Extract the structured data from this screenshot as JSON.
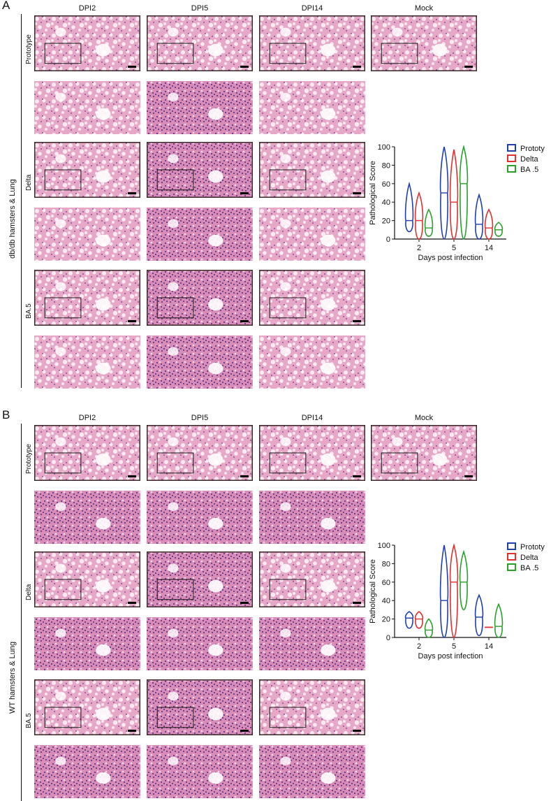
{
  "panels": [
    {
      "letter": "A",
      "side_label": "db/db hamsters & Lung",
      "columns": [
        "DPI2",
        "DPI5",
        "DPI14",
        "Mock"
      ],
      "rows": [
        "Prototype",
        "Delta",
        "BA.5"
      ],
      "chart": {
        "ylabel": "Pathological Score",
        "xlabel": "Days post infection",
        "ticks_x": [
          "2",
          "5",
          "14"
        ],
        "ticks_y": [
          "0",
          "20",
          "40",
          "60",
          "80",
          "100"
        ],
        "legend": [
          "Prototype",
          "Delta",
          "BA .5"
        ]
      }
    },
    {
      "letter": "B",
      "side_label": "WT hamsters & Lung",
      "columns": [
        "DPI2",
        "DPI5",
        "DPI14",
        "Mock"
      ],
      "rows": [
        "Prototype",
        "Delta",
        "BA.5"
      ],
      "chart": {
        "ylabel": "Pathological Score",
        "xlabel": "Days post infection",
        "ticks_x": [
          "2",
          "5",
          "14"
        ],
        "ticks_y": [
          "0",
          "20",
          "40",
          "60",
          "80",
          "100"
        ],
        "legend": [
          "Prototype",
          "Delta",
          "BA .5"
        ]
      }
    }
  ],
  "chart_data": [
    {
      "type": "violin",
      "xlabel": "Days post infection",
      "ylabel": "Pathological Score",
      "categories": [
        "2",
        "5",
        "14"
      ],
      "ylim": [
        0,
        100
      ],
      "legend_position": "top-right",
      "colors": [
        "#1f3fb0",
        "#e03030",
        "#2aa02a"
      ],
      "series": [
        {
          "name": "Prototype",
          "median": [
            20,
            50,
            16
          ],
          "min": [
            8,
            0,
            0
          ],
          "max": [
            60,
            100,
            48
          ]
        },
        {
          "name": "Delta",
          "median": [
            20,
            40,
            12
          ],
          "min": [
            0,
            0,
            0
          ],
          "max": [
            50,
            97,
            32
          ]
        },
        {
          "name": "BA .5",
          "median": [
            12,
            60,
            10
          ],
          "min": [
            3,
            0,
            3
          ],
          "max": [
            32,
            100,
            18
          ]
        }
      ]
    },
    {
      "type": "violin",
      "xlabel": "Days post infection",
      "ylabel": "Pathological Score",
      "categories": [
        "2",
        "5",
        "14"
      ],
      "ylim": [
        0,
        100
      ],
      "legend_position": "top-right",
      "colors": [
        "#1f3fb0",
        "#e03030",
        "#2aa02a"
      ],
      "series": [
        {
          "name": "Prototype",
          "median": [
            21,
            40,
            22
          ],
          "min": [
            10,
            0,
            2
          ],
          "max": [
            28,
            100,
            46
          ]
        },
        {
          "name": "Delta",
          "median": [
            20,
            60,
            11
          ],
          "min": [
            10,
            0,
            11
          ],
          "max": [
            28,
            100,
            11
          ]
        },
        {
          "name": "BA .5",
          "median": [
            8,
            60,
            12
          ],
          "min": [
            0,
            30,
            0
          ],
          "max": [
            20,
            93,
            36
          ]
        }
      ]
    }
  ]
}
